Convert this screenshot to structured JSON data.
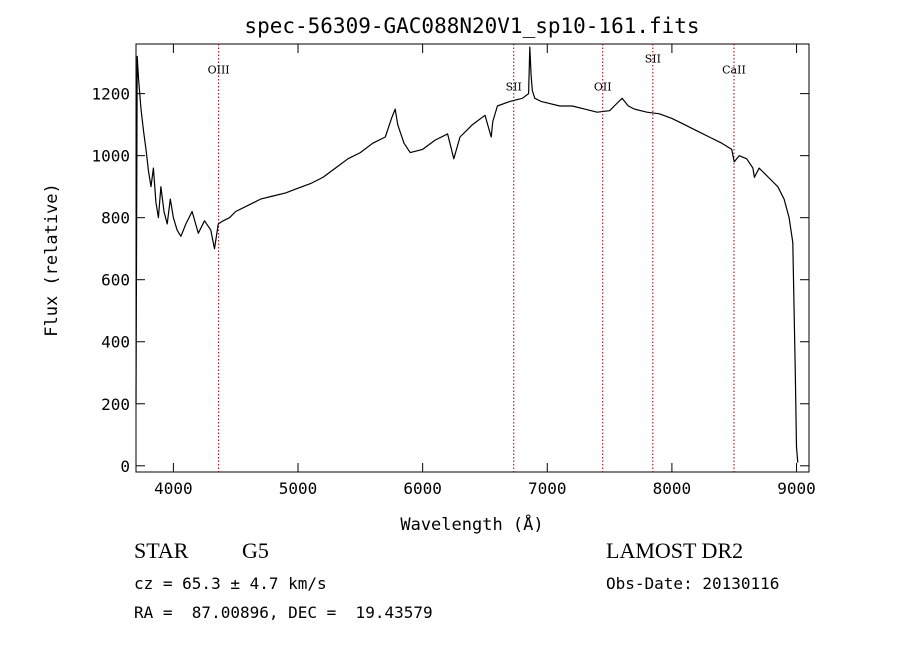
{
  "chart_data": {
    "type": "line",
    "title": "spec-56309-GAC088N20V1_sp10-161.fits",
    "xlabel": "Wavelength (Å)",
    "ylabel": "Flux (relative)",
    "xlim": [
      3700,
      9100
    ],
    "ylim": [
      -20,
      1360
    ],
    "xticks": [
      4000,
      5000,
      6000,
      7000,
      8000,
      9000
    ],
    "yticks": [
      0,
      200,
      400,
      600,
      800,
      1000,
      1200
    ],
    "grid": false,
    "line_color": "#000000",
    "marker_color": "#8b0000",
    "lines": [
      {
        "label": "OIII",
        "x": 4363,
        "label_y": 1265
      },
      {
        "label": "SII",
        "x": 6731,
        "label_y": 1210
      },
      {
        "label": "OII",
        "x": 7445,
        "label_y": 1210
      },
      {
        "label": "SII",
        "x": 7847,
        "label_y": 1300
      },
      {
        "label": "CaII",
        "x": 8498,
        "label_y": 1265
      }
    ],
    "series": [
      {
        "x": [
          3700,
          3710,
          3720,
          3740,
          3760,
          3780,
          3800,
          3820,
          3840,
          3860,
          3880,
          3900,
          3925,
          3950,
          3975,
          4000,
          4030,
          4060,
          4100,
          4150,
          4200,
          4250,
          4300,
          4330,
          4360,
          4400,
          4450,
          4500,
          4600,
          4700,
          4800,
          4900,
          5000,
          5100,
          5200,
          5300,
          5400,
          5500,
          5600,
          5700,
          5750,
          5780,
          5800,
          5850,
          5900,
          6000,
          6100,
          6200,
          6250,
          6300,
          6350,
          6400,
          6500,
          6550,
          6563,
          6600,
          6700,
          6800,
          6850,
          6860,
          6870,
          6880,
          6900,
          6950,
          7000,
          7100,
          7200,
          7300,
          7400,
          7500,
          7550,
          7600,
          7650,
          7700,
          7800,
          7900,
          8000,
          8100,
          8200,
          8300,
          8400,
          8480,
          8500,
          8540,
          8600,
          8650,
          8662,
          8700,
          8750,
          8800,
          8850,
          8900,
          8940,
          8970,
          8990,
          9000,
          9010
        ],
        "y": [
          200,
          1320,
          1250,
          1150,
          1080,
          1020,
          950,
          900,
          960,
          850,
          800,
          900,
          820,
          780,
          860,
          800,
          760,
          740,
          780,
          820,
          750,
          790,
          760,
          700,
          780,
          790,
          800,
          820,
          840,
          860,
          870,
          880,
          895,
          910,
          930,
          960,
          990,
          1010,
          1040,
          1060,
          1120,
          1150,
          1100,
          1040,
          1010,
          1020,
          1050,
          1070,
          990,
          1060,
          1080,
          1100,
          1130,
          1060,
          1110,
          1160,
          1175,
          1185,
          1200,
          1350,
          1260,
          1210,
          1185,
          1175,
          1170,
          1160,
          1160,
          1150,
          1140,
          1145,
          1165,
          1185,
          1160,
          1150,
          1140,
          1135,
          1120,
          1100,
          1080,
          1060,
          1040,
          1020,
          980,
          1000,
          990,
          960,
          930,
          960,
          940,
          920,
          900,
          860,
          800,
          720,
          300,
          60,
          10
        ]
      }
    ]
  },
  "info": {
    "object_class": "STAR",
    "subclass": "G5",
    "cz": "cz = 65.3 ± 4.7 km/s",
    "radec": "RA =  87.00896, DEC =  19.43579",
    "survey": "LAMOST DR2",
    "obs_date": "Obs-Date: 20130116"
  }
}
